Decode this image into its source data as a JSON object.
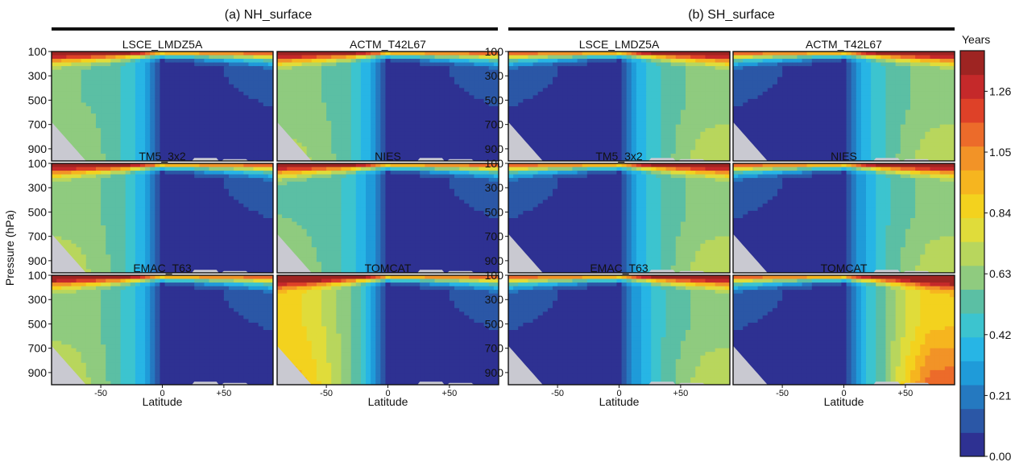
{
  "chart_data": {
    "type": "heatmap",
    "ylabel": "Pressure (hPa)",
    "xlabel": "Latitude",
    "x_ticks": [
      "-50",
      "0",
      "+50"
    ],
    "x_tick_values": [
      -50,
      0,
      50
    ],
    "xlim": [
      -90,
      90
    ],
    "y_ticks": [
      "100",
      "300",
      "500",
      "700",
      "900"
    ],
    "y_tick_values": [
      100,
      300,
      500,
      700,
      900
    ],
    "ylim": [
      1000,
      100
    ],
    "colorbar": {
      "label": "Years",
      "range": [
        0,
        1.4
      ],
      "ticks": [
        "1.26",
        "1.05",
        "0.84",
        "0.63",
        "0.42",
        "0.21",
        "0.00"
      ],
      "tick_values": [
        1.26,
        1.05,
        0.84,
        0.63,
        0.42,
        0.21,
        0.0
      ],
      "colors": [
        "#2e3192",
        "#2b57a6",
        "#2579c0",
        "#1f9bd9",
        "#27b5e5",
        "#3cc4cf",
        "#5bbfa4",
        "#8fcb7f",
        "#b8d65d",
        "#e0dc3a",
        "#f3d21e",
        "#f6b51f",
        "#f29327",
        "#ec6b2a",
        "#de4128",
        "#c5292a",
        "#9e2422"
      ]
    },
    "groups": [
      {
        "title": "(a) NH_surface",
        "source": "NH",
        "panels": [
          {
            "title": "LSCE_LMDZ5A",
            "tropics": 0.6,
            "extra": 0.6,
            "lowboost": 0.08
          },
          {
            "title": "ACTM_T42L67",
            "tropics": 0.62,
            "extra": 0.62,
            "lowboost": 0.08
          },
          {
            "title": "TM5_3x2",
            "tropics": 0.62,
            "extra": 0.63,
            "lowboost": 0.09
          },
          {
            "title": "NIES",
            "tropics": 0.58,
            "extra": 0.58,
            "lowboost": 0.06
          },
          {
            "title": "EMAC_T63",
            "tropics": 0.6,
            "extra": 0.64,
            "lowboost": 0.09
          },
          {
            "title": "TOMCAT",
            "tropics": 0.72,
            "extra": 0.85,
            "lowboost": 0.1
          }
        ]
      },
      {
        "title": "(b) SH_surface",
        "source": "SH",
        "panels": [
          {
            "title": "LSCE_LMDZ5A",
            "tropics": 0.6,
            "extra": 0.62,
            "lowboost": 0.12
          },
          {
            "title": "ACTM_T42L67",
            "tropics": 0.6,
            "extra": 0.62,
            "lowboost": 0.12
          },
          {
            "title": "TM5_3x2",
            "tropics": 0.6,
            "extra": 0.62,
            "lowboost": 0.12
          },
          {
            "title": "NIES",
            "tropics": 0.58,
            "extra": 0.62,
            "lowboost": 0.12
          },
          {
            "title": "EMAC_T63",
            "tropics": 0.58,
            "extra": 0.62,
            "lowboost": 0.12
          },
          {
            "title": "TOMCAT",
            "tropics": 0.68,
            "extra": 0.9,
            "lowboost": 0.25
          }
        ]
      }
    ]
  }
}
